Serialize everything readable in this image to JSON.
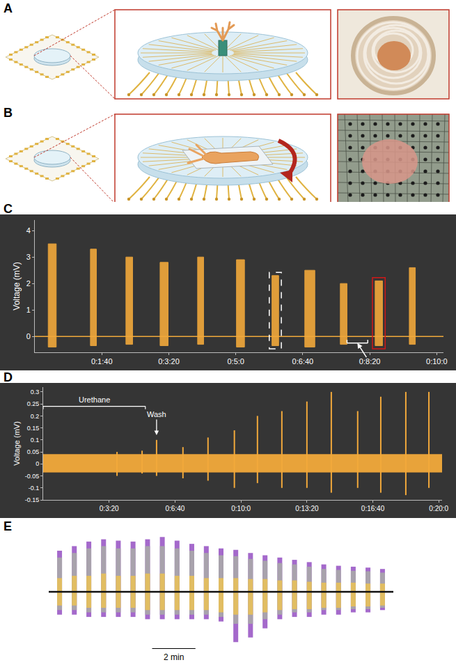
{
  "panel_labels": [
    "A",
    "B",
    "C",
    "D",
    "E"
  ],
  "chart_data": [
    {
      "type": "line",
      "ylabel": "Voltage (mV)",
      "color": "#f2a93b",
      "grid": false,
      "xlim": [
        0,
        610
      ],
      "xticks": [
        {
          "value": 100,
          "label": "0:1:40"
        },
        {
          "value": 200,
          "label": "0:3:20"
        },
        {
          "value": 300,
          "label": "0:5:0"
        },
        {
          "value": 400,
          "label": "0:6:40"
        },
        {
          "value": 500,
          "label": "0:8:20"
        },
        {
          "value": 600,
          "label": "0:10:0"
        }
      ],
      "ylim": [
        -0.6,
        4.4
      ],
      "yticks": [
        0,
        1,
        2,
        3,
        4
      ],
      "baseline": 0,
      "bursts": {
        "start": [
          20,
          83,
          136,
          187,
          243,
          301,
          354,
          403,
          456,
          508,
          559
        ],
        "end": [
          32,
          92,
          146,
          199,
          252,
          313,
          364,
          418,
          466,
          519,
          568
        ],
        "max": [
          3.5,
          3.3,
          3.0,
          2.8,
          3.0,
          2.9,
          2.3,
          2.5,
          2.0,
          2.1,
          2.6
        ],
        "min": [
          -0.4,
          -0.35,
          -0.3,
          -0.35,
          -0.3,
          -0.4,
          -0.35,
          -0.4,
          -0.3,
          -0.35,
          -0.3
        ]
      },
      "boxes": [
        {
          "burst": 6,
          "color": "#ffffff",
          "line_style": "dash"
        },
        {
          "burst": 9,
          "color": "#d01818",
          "line_style": "solid"
        }
      ],
      "bracket": {
        "from": 466,
        "to": 497,
        "y": -0.25
      }
    },
    {
      "type": "line",
      "ylabel": "Voltage (mV)",
      "color": "#f2a93b",
      "grid": false,
      "xlim": [
        0,
        1210
      ],
      "xticks": [
        {
          "value": 200,
          "label": "0:3:20"
        },
        {
          "value": 400,
          "label": "0:6:40"
        },
        {
          "value": 600,
          "label": "0:10:0"
        },
        {
          "value": 800,
          "label": "0:13:20"
        },
        {
          "value": 1000,
          "label": "0:16:40"
        },
        {
          "value": 1200,
          "label": "0:20:0"
        }
      ],
      "ylim": [
        -0.15,
        0.32
      ],
      "yticks": [
        0.3,
        0.25,
        0.2,
        0.15,
        0.1,
        0.05,
        0,
        -0.05,
        -0.1,
        -0.15
      ],
      "noise_band": [
        -0.035,
        0.04
      ],
      "spikes": {
        "x": [
          224,
          300,
          344,
          424,
          500,
          580,
          650,
          724,
          800,
          874,
          954,
          1024,
          1100,
          1170
        ],
        "max": [
          0.05,
          0.055,
          0.1,
          0.07,
          0.11,
          0.14,
          0.2,
          0.22,
          0.26,
          0.3,
          0.22,
          0.28,
          0.3,
          0.3
        ],
        "min": [
          -0.05,
          -0.04,
          -0.05,
          -0.06,
          -0.07,
          -0.1,
          -0.08,
          -0.1,
          -0.1,
          -0.12,
          -0.1,
          -0.12,
          -0.13,
          -0.1
        ]
      },
      "annotations": [
        {
          "text": "Urethane",
          "x": [
            0,
            310
          ],
          "y": 0.24
        },
        {
          "text": "Wash",
          "x": 344,
          "y": 0.12
        }
      ]
    },
    {
      "type": "line",
      "tick_labels": false,
      "grid": false,
      "xlim": [
        -0.5,
        15.4
      ],
      "ylim": [
        -1.25,
        1.25
      ],
      "baseline": 0,
      "x": [
        0,
        0.68,
        1.35,
        2.03,
        2.71,
        3.39,
        4.06,
        4.74,
        5.42,
        6.1,
        6.77,
        7.45,
        8.13,
        8.81,
        9.48,
        10.16,
        10.84,
        11.52,
        12.19,
        12.87,
        13.55,
        14.23,
        14.9
      ],
      "series": [
        {
          "color": "#9b59c6",
          "max": [
            0.9,
            1.0,
            1.1,
            1.15,
            1.12,
            1.1,
            1.15,
            1.2,
            1.12,
            1.05,
            1.0,
            0.95,
            0.92,
            0.85,
            0.8,
            0.75,
            0.7,
            0.65,
            0.6,
            0.57,
            0.55,
            0.53,
            0.5
          ],
          "min": [
            -0.5,
            -0.5,
            -0.55,
            -0.55,
            -0.55,
            -0.55,
            -0.6,
            -0.6,
            -0.6,
            -0.6,
            -0.6,
            -0.65,
            -1.1,
            -1.0,
            -0.8,
            -0.6,
            -0.55,
            -0.55,
            -0.5,
            -0.5,
            -0.45,
            -0.45,
            -0.4
          ]
        },
        {
          "color": "#a9a9a9",
          "max": [
            0.75,
            0.85,
            0.95,
            1.0,
            0.95,
            0.95,
            1.0,
            1.0,
            0.95,
            0.9,
            0.85,
            0.8,
            0.78,
            0.72,
            0.68,
            0.63,
            0.6,
            0.55,
            0.5,
            0.48,
            0.46,
            0.45,
            0.42
          ],
          "min": [
            -0.4,
            -0.4,
            -0.45,
            -0.45,
            -0.45,
            -0.45,
            -0.5,
            -0.5,
            -0.5,
            -0.5,
            -0.5,
            -0.55,
            -0.7,
            -0.7,
            -0.6,
            -0.5,
            -0.45,
            -0.45,
            -0.4,
            -0.4,
            -0.38,
            -0.38,
            -0.35
          ]
        },
        {
          "color": "#e8c15a",
          "max": [
            0.3,
            0.35,
            0.35,
            0.4,
            0.35,
            0.35,
            0.4,
            0.4,
            0.35,
            0.35,
            0.3,
            0.3,
            0.3,
            0.28,
            0.28,
            0.25,
            0.25,
            0.22,
            0.2,
            0.2,
            0.2,
            0.18,
            0.18
          ],
          "min": [
            -0.3,
            -0.3,
            -0.35,
            -0.35,
            -0.35,
            -0.35,
            -0.4,
            -0.4,
            -0.4,
            -0.4,
            -0.4,
            -0.45,
            -0.5,
            -0.5,
            -0.45,
            -0.4,
            -0.38,
            -0.38,
            -0.35,
            -0.35,
            -0.32,
            -0.32,
            -0.3
          ]
        }
      ],
      "scale_bar": {
        "value": 2,
        "label": "2 min"
      }
    }
  ]
}
